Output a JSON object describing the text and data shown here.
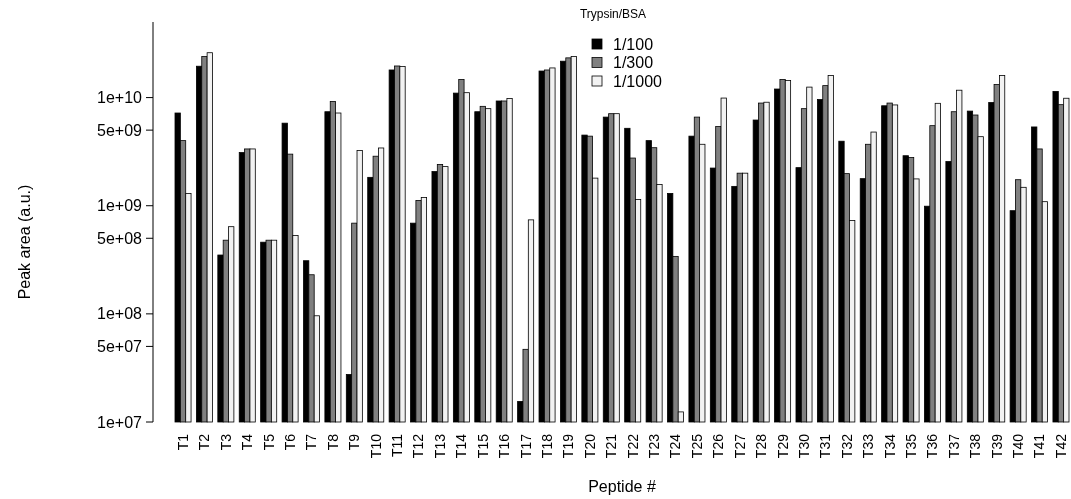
{
  "chart_data": {
    "type": "bar",
    "xlabel": "Peptide #",
    "ylabel": "Peak area (a.u.)",
    "legend_title": "Trypsin/BSA",
    "legend": "top",
    "log": "y",
    "grid": false,
    "categories": [
      "T1",
      "T2",
      "T3",
      "T4",
      "T5",
      "T6",
      "T7",
      "T8",
      "T9",
      "T10",
      "T11",
      "T12",
      "T13",
      "T14",
      "T15",
      "T16",
      "T17",
      "T18",
      "T19",
      "T20",
      "T21",
      "T22",
      "T23",
      "T24",
      "T25",
      "T26",
      "T27",
      "T28",
      "T29",
      "T30",
      "T31",
      "T32",
      "T33",
      "T34",
      "T35",
      "T36",
      "T37",
      "T38",
      "T39",
      "T40",
      "T41",
      "T42"
    ],
    "ylim": [
      10000000.0,
      50000000000.0
    ],
    "yticks": [
      {
        "value": 10000000.0,
        "label": "1e+07"
      },
      {
        "value": 50000000.0,
        "label": "5e+07"
      },
      {
        "value": 100000000.0,
        "label": "1e+08"
      },
      {
        "value": 500000000.0,
        "label": "5e+08"
      },
      {
        "value": 1000000000.0,
        "label": "1e+09"
      },
      {
        "value": 5000000000.0,
        "label": "5e+09"
      },
      {
        "value": 10000000000.0,
        "label": "1e+10"
      }
    ],
    "series": [
      {
        "name": "1/100",
        "color": "#000000",
        "values": [
          7200000000.0,
          19500000000.0,
          350000000.0,
          3100000000.0,
          460000000.0,
          5800000000.0,
          310000000.0,
          7400000000.0,
          27500000.0,
          1830000000.0,
          18000000000.0,
          690000000.0,
          2070000000.0,
          11000000000.0,
          7400000000.0,
          9300000000.0,
          15500000.0,
          17600000000.0,
          21700000000.0,
          4500000000.0,
          6600000000.0,
          5200000000.0,
          4000000000.0,
          1300000000.0,
          4400000000.0,
          2230000000.0,
          1510000000.0,
          6200000000.0,
          12000000000.0,
          2250000000.0,
          9600000000.0,
          3950000000.0,
          1780000000.0,
          8400000000.0,
          2900000000.0,
          990000000.0,
          2560000000.0,
          7500000000.0,
          9000000000.0,
          900000000.0,
          5350000000.0,
          11400000000.0
        ]
      },
      {
        "name": "1/300",
        "color": "#808080",
        "values": [
          4000000000.0,
          24000000000.0,
          480000000.0,
          3350000000.0,
          480000000.0,
          3000000000.0,
          230000000.0,
          9200000000.0,
          690000000.0,
          2870000000.0,
          19600000000.0,
          1120000000.0,
          2410000000.0,
          14700000000.0,
          8300000000.0,
          9300000000.0,
          47000000.0,
          18000000000.0,
          23300000000.0,
          4400000000.0,
          7100000000.0,
          2760000000.0,
          3440000000.0,
          340000000.0,
          6600000000.0,
          5400000000.0,
          2000000000.0,
          8900000000.0,
          14700000000.0,
          7900000000.0,
          12900000000.0,
          1980000000.0,
          3700000000.0,
          8900000000.0,
          2790000000.0,
          5500000000.0,
          7400000000.0,
          6900000000.0,
          13200000000.0,
          1740000000.0,
          3350000000.0,
          8600000000.0
        ]
      },
      {
        "name": "1/1000",
        "color": "#f2f2f2",
        "values": [
          1300000000.0,
          26000000000.0,
          640000000.0,
          3350000000.0,
          480000000.0,
          530000000.0,
          96000000.0,
          7200000000.0,
          3240000000.0,
          3420000000.0,
          19400000000.0,
          1190000000.0,
          2300000000.0,
          11100000000.0,
          7900000000.0,
          9800000000.0,
          740000000.0,
          18800000000.0,
          24000000000.0,
          1800000000.0,
          7100000000.0,
          1140000000.0,
          1570000000.0,
          12400000.0,
          3700000000.0,
          9900000000.0,
          2000000000.0,
          9060000000.0,
          14400000000.0,
          12500000000.0,
          16000000000.0,
          730000000.0,
          4800000000.0,
          8550000000.0,
          1770000000.0,
          8850000000.0,
          11700000000.0,
          4350000000.0,
          16000000000.0,
          1480000000.0,
          1090000000.0,
          9860000000.0
        ]
      }
    ]
  }
}
